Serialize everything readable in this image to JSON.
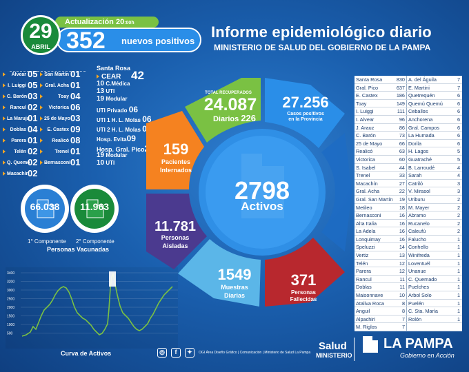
{
  "header": {
    "day": "29",
    "month": "ABRIL",
    "update_label": "Actualización 20",
    "update_suffix": ":00h",
    "new_positives": "352",
    "new_positives_label": "nuevos positivos",
    "title": "Informe epidemiológico diario",
    "subtitle": "MINISTERIO DE SALUD DEL GOBIERNO DE LA PAMPA"
  },
  "left_list": {
    "col1": [
      {
        "name": "Alvear",
        "value": "05"
      },
      {
        "name": "I. Luiggi",
        "value": "05"
      },
      {
        "name": "C. Barón",
        "value": "03"
      },
      {
        "name": "Rancul",
        "value": "02"
      },
      {
        "name": "La Maruja",
        "value": "01"
      },
      {
        "name": "Doblas",
        "value": "04"
      },
      {
        "name": "Parera",
        "value": "01"
      },
      {
        "name": "Telén",
        "value": "02"
      },
      {
        "name": "Q. Quemo",
        "value": "02"
      },
      {
        "name": "Macachín",
        "value": "02"
      }
    ],
    "col2": [
      {
        "name": "San Martín",
        "value": "01"
      },
      {
        "name": "Gral. Acha",
        "value": "01"
      },
      {
        "name": "Toay",
        "value": "04"
      },
      {
        "name": "Victorica",
        "value": "06"
      },
      {
        "name": "25 de Mayo",
        "value": "03"
      },
      {
        "name": "E. Castex",
        "value": "09"
      },
      {
        "name": "Realicó",
        "value": "08"
      },
      {
        "name": "Trenel",
        "value": "01"
      },
      {
        "name": "Bernasconi",
        "value": "01"
      }
    ]
  },
  "santa_rosa": {
    "title": "Santa Rosa",
    "cear_label": "CEAR",
    "cear_value": "42",
    "lines": [
      {
        "n": "10",
        "t": "C.Médica"
      },
      {
        "n": "13",
        "t": "UTI"
      },
      {
        "n": "19",
        "t": "Modular"
      }
    ],
    "uti_privado": {
      "label": "UTI Privado",
      "value": "06"
    },
    "uti1": {
      "label": "UTI 1 H. L. Molas",
      "value": "06"
    },
    "uti2": {
      "label": "UTI 2 H. L. Molas",
      "value": "06"
    },
    "evita": {
      "label": "Hosp. Evita",
      "value": "09"
    },
    "pico": {
      "label": "Hosp. Gral. Pico",
      "value": "29"
    },
    "pico_lines": [
      {
        "n": "19",
        "t": "Modular"
      },
      {
        "n": "10",
        "t": "UTI"
      }
    ]
  },
  "vaccines": {
    "first_value": "66.038",
    "second_value": "11.963",
    "first_label": "1° Componente",
    "second_label": "2° Componente",
    "caption": "Personas Vacunadas"
  },
  "curve": {
    "label": "Curva de Activos",
    "y_ticks": [
      "3400",
      "3200",
      "3000",
      "2500",
      "2000",
      "1500",
      "1000",
      "500"
    ]
  },
  "center": {
    "recovered_label": "TOTAL RECUPERADOS",
    "recovered": "24.087",
    "daily_label": "Diarios",
    "daily": "226",
    "positives": "27.256",
    "positives_label_1": "Casos positivos",
    "positives_label_2": "en la Provincia",
    "hospitalized": "159",
    "hospitalized_label_1": "Pacientes",
    "hospitalized_label_2": "Internados",
    "active": "2798",
    "active_label": "Activos",
    "isolated": "11.781",
    "isolated_label_1": "Personas",
    "isolated_label_2": "Aisladas",
    "samples": "1549",
    "samples_label_1": "Muestras",
    "samples_label_2": "Diarias",
    "deceased": "371",
    "deceased_label_1": "Personas",
    "deceased_label_2": "Fallecidas"
  },
  "table": {
    "left": [
      {
        "name": "Santa Rosa",
        "value": "830"
      },
      {
        "name": "Gral. Pico",
        "value": "637"
      },
      {
        "name": "E. Castex",
        "value": "186"
      },
      {
        "name": "Toay",
        "value": "149"
      },
      {
        "name": "I. Luiggi",
        "value": "111"
      },
      {
        "name": "I. Alvear",
        "value": "96"
      },
      {
        "name": "J. Arauz",
        "value": "86"
      },
      {
        "name": "C. Barón",
        "value": "73"
      },
      {
        "name": "25 de Mayo",
        "value": "66"
      },
      {
        "name": "Realicó",
        "value": "63"
      },
      {
        "name": "Victorica",
        "value": "60"
      },
      {
        "name": "S. Isabel",
        "value": "44"
      },
      {
        "name": "Trenel",
        "value": "33"
      },
      {
        "name": "Macachín",
        "value": "27"
      },
      {
        "name": "Gral. Acha",
        "value": "22"
      },
      {
        "name": "Gral. San Martín",
        "value": "19"
      },
      {
        "name": "Metileo",
        "value": "18"
      },
      {
        "name": "Bernasconi",
        "value": "16"
      },
      {
        "name": "Alta Italia",
        "value": "16"
      },
      {
        "name": "La Adela",
        "value": "16"
      },
      {
        "name": "Lonquimay",
        "value": "16"
      },
      {
        "name": "Speluzzi",
        "value": "14"
      },
      {
        "name": "Vertiz",
        "value": "13"
      },
      {
        "name": "Telén",
        "value": "12"
      },
      {
        "name": "Parera",
        "value": "12"
      },
      {
        "name": "Rancul",
        "value": "11"
      },
      {
        "name": "Doblas",
        "value": "11"
      },
      {
        "name": "Maisonnave",
        "value": "10"
      },
      {
        "name": "Ataliva Roca",
        "value": "8"
      },
      {
        "name": "Anguil",
        "value": "8"
      },
      {
        "name": "Alpachiri",
        "value": "7"
      },
      {
        "name": "M. Riglos",
        "value": "7"
      }
    ],
    "right": [
      {
        "name": "A. del Águila",
        "value": "7"
      },
      {
        "name": "E. Martini",
        "value": "7"
      },
      {
        "name": "Quetrequén",
        "value": "6"
      },
      {
        "name": "Quemú Quemú",
        "value": "6"
      },
      {
        "name": "Ceballos",
        "value": "6"
      },
      {
        "name": "Anchorena",
        "value": "6"
      },
      {
        "name": "Gral. Campos",
        "value": "6"
      },
      {
        "name": "La Humada",
        "value": "6"
      },
      {
        "name": "Dorila",
        "value": "6"
      },
      {
        "name": "H. Lagos",
        "value": "5"
      },
      {
        "name": "Guatraché",
        "value": "5"
      },
      {
        "name": "B. Larroudé",
        "value": "4"
      },
      {
        "name": "Sarah",
        "value": "4"
      },
      {
        "name": "Catriló",
        "value": "3"
      },
      {
        "name": "V. Mirasol",
        "value": "3"
      },
      {
        "name": "Uriburu",
        "value": "2"
      },
      {
        "name": "M. Mayer",
        "value": "2"
      },
      {
        "name": "Abramo",
        "value": "2"
      },
      {
        "name": "Rucanelo",
        "value": "2"
      },
      {
        "name": "Caleufú",
        "value": "2"
      },
      {
        "name": "Falucho",
        "value": "1"
      },
      {
        "name": "Conhello",
        "value": "1"
      },
      {
        "name": "Winifreda",
        "value": "1"
      },
      {
        "name": "Loventuél",
        "value": "1"
      },
      {
        "name": "Unanue",
        "value": "1"
      },
      {
        "name": "C. Quemado",
        "value": "1"
      },
      {
        "name": "Puelches",
        "value": "1"
      },
      {
        "name": "Arbol Solo",
        "value": "1"
      },
      {
        "name": "Puelén",
        "value": "1"
      },
      {
        "name": "C. Sta. María",
        "value": "1"
      },
      {
        "name": "Rolón",
        "value": "1"
      }
    ]
  },
  "footer": {
    "credits": "OGI Área Diseño Gráfico  |  Comunicación  |  Ministerio de Salud La Pampa",
    "salud": "Salud",
    "ministerio": "MINISTERIO",
    "brand": "LA PAMPA",
    "tagline": "Gobierno en Acción"
  },
  "colors": {
    "green": "#7ac143",
    "blue": "#2a8ee8",
    "orange": "#f58220",
    "purple": "#4b3a8f",
    "red": "#b8282e",
    "light_blue": "#5bb6e8"
  }
}
